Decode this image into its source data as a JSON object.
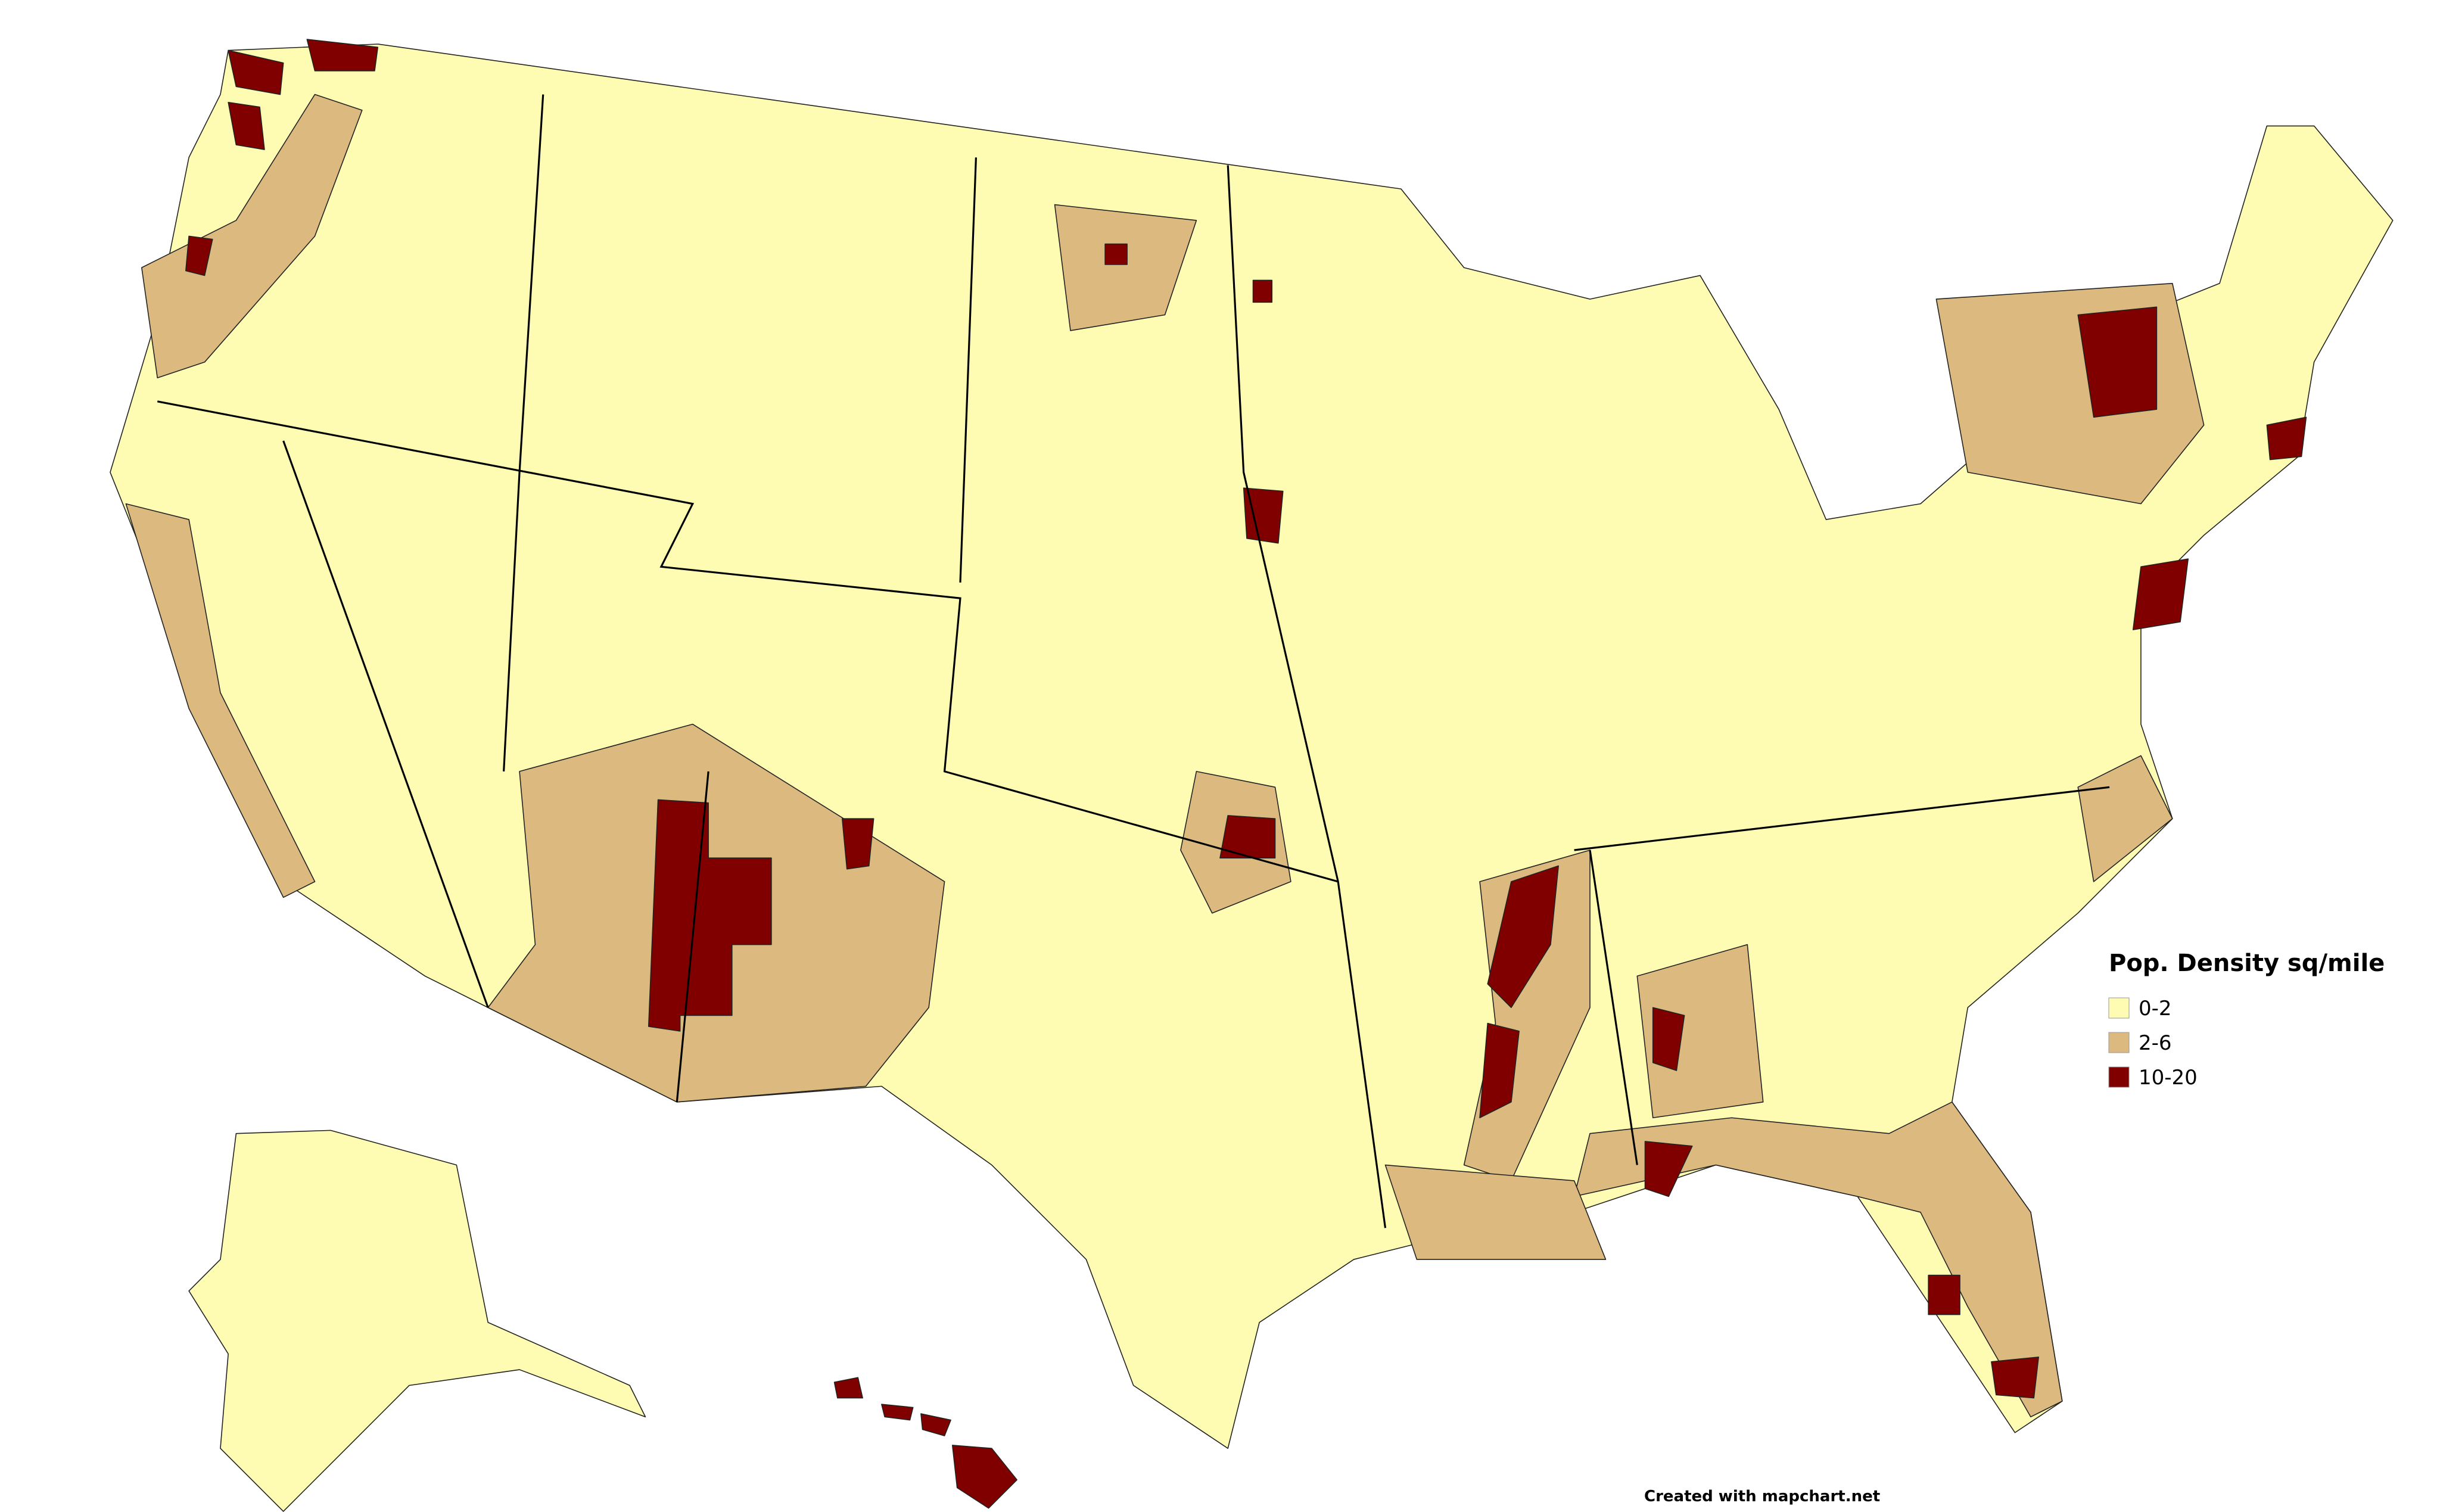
{
  "legend": {
    "title": "Pop. Density sq/mile",
    "items": [
      {
        "label": "0-2",
        "color": "#fefbb2"
      },
      {
        "label": "2-6",
        "color": "#dbb97f"
      },
      {
        "label": "10-20",
        "color": "#800000"
      }
    ]
  },
  "footer": "Created with mapchart.net"
}
